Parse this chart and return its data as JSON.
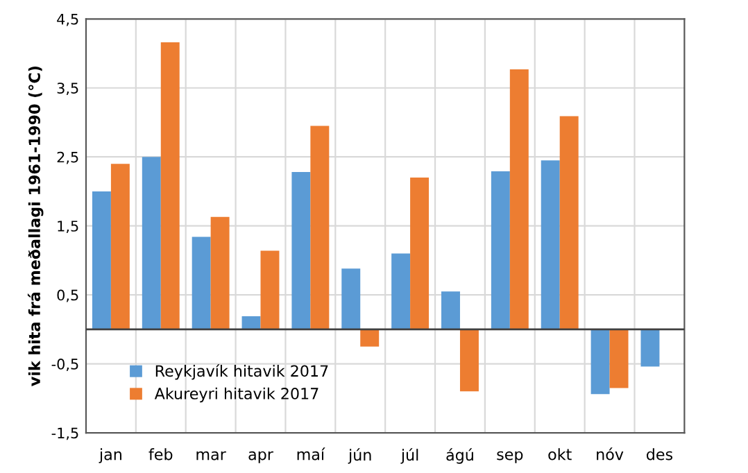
{
  "chart_data": {
    "type": "bar",
    "ylabel": "vik hita frá meðallagi 1961-1990 (°C)",
    "categories": [
      "jan",
      "feb",
      "mar",
      "apr",
      "maí",
      "jún",
      "júl",
      "ágú",
      "sep",
      "okt",
      "nóv",
      "des"
    ],
    "series": [
      {
        "name": "Reykjavík hitavik 2017",
        "color": "#5b9bd5",
        "values": [
          2.0,
          2.5,
          1.34,
          0.19,
          2.28,
          0.88,
          1.1,
          0.55,
          2.29,
          2.45,
          -0.94,
          -0.54
        ]
      },
      {
        "name": "Akureyri hitavik 2017",
        "color": "#ed7d31",
        "values": [
          2.4,
          4.16,
          1.63,
          1.14,
          2.95,
          -0.25,
          2.2,
          -0.9,
          3.77,
          3.09,
          -0.85,
          0.0
        ]
      }
    ],
    "ylim": [
      -1.5,
      4.5
    ],
    "yticks": [
      {
        "value": -1.5,
        "label": "-1,5"
      },
      {
        "value": -0.5,
        "label": "-0,5"
      },
      {
        "value": 0.5,
        "label": "0,5"
      },
      {
        "value": 1.5,
        "label": "1,5"
      },
      {
        "value": 2.5,
        "label": "2,5"
      },
      {
        "value": 3.5,
        "label": "3,5"
      },
      {
        "value": 4.5,
        "label": "4,5"
      }
    ],
    "grid": true,
    "legend": "bottom left"
  }
}
